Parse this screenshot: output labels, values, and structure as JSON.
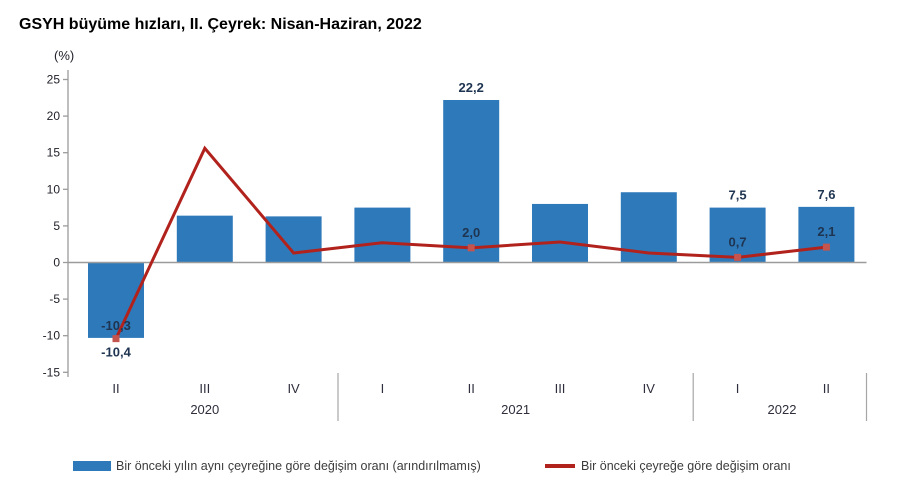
{
  "header": {
    "title": "GSYH büyüme hızları, II. Çeyrek: Nisan-Haziran, 2022",
    "unit_label": "(%)"
  },
  "chart_data": {
    "type": "bar",
    "subtype": "bar-with-line-overlay",
    "categories": [
      "II",
      "III",
      "IV",
      "I",
      "II",
      "III",
      "IV",
      "I",
      "II"
    ],
    "year_groups": [
      {
        "label": "2020",
        "count": 3
      },
      {
        "label": "2021",
        "count": 4
      },
      {
        "label": "2022",
        "count": 2
      }
    ],
    "ylim": [
      -15,
      25
    ],
    "ytick_step": 5,
    "grid": false,
    "legend_position": "bottom",
    "series": [
      {
        "name": "Bir önceki yılın aynı çeyreğine göre değişim oranı (arındırılmamış)",
        "type": "bar",
        "values": [
          -10.3,
          6.4,
          6.3,
          7.5,
          22.2,
          8.0,
          9.6,
          7.5,
          7.6
        ],
        "labels": [
          "-10,3",
          null,
          null,
          null,
          "22,2",
          null,
          null,
          "7,5",
          "7,6"
        ]
      },
      {
        "name": "Bir önceki çeyreğe göre değişim oranı",
        "type": "line",
        "values": [
          -10.4,
          15.6,
          1.3,
          2.7,
          2.0,
          2.8,
          1.3,
          0.7,
          2.1
        ],
        "labels": [
          "-10,4",
          null,
          null,
          null,
          "2,0",
          null,
          null,
          "0,7",
          "2,1"
        ]
      }
    ]
  },
  "colors": {
    "bar": "#2E79BA",
    "line": "#B2221D",
    "marker": "#C4544E",
    "axis": "#9b9b9b",
    "separator": "#a6a6a6",
    "tick_text": "#1f1f28",
    "category_text": "#2e2e3d",
    "data_label": "#1e3450",
    "legend_text": "#3c3c3c",
    "title_text": "#000000"
  }
}
